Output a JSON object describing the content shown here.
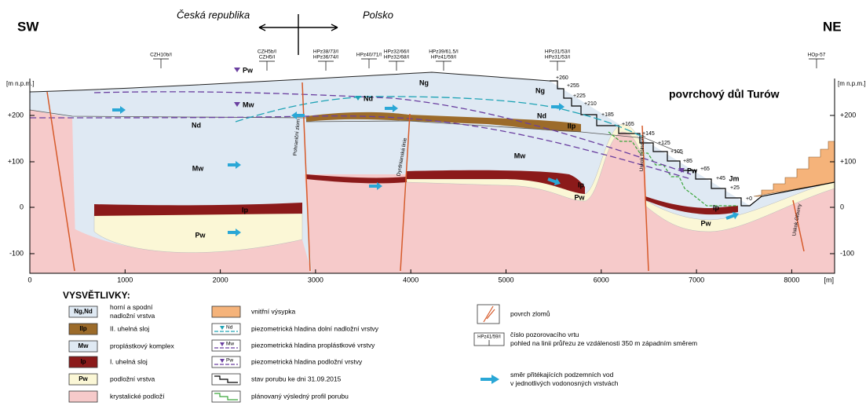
{
  "header": {
    "sw": "SW",
    "ne": "NE",
    "country_left": "Česká republika",
    "country_right": "Polsko",
    "mine": "povrchový důl Turów"
  },
  "axes": {
    "unit_left": "[m n.p.m.]",
    "unit_right": "[m n.p.m.]",
    "y_ticks_left": [
      "+200",
      "+100",
      "0",
      "-100"
    ],
    "y_ticks_right": [
      "+200",
      "+100",
      "0",
      "-100"
    ],
    "x_ticks": [
      "0",
      "1000",
      "2000",
      "3000",
      "4000",
      "5000",
      "6000",
      "7000",
      "8000"
    ],
    "x_unit": "[m]"
  },
  "wells": [
    [
      "CZH10b/I"
    ],
    [
      "CZH5b/I",
      "CZH5/I"
    ],
    [
      "HPz38/73/I",
      "HPz36/74/I"
    ],
    [
      "HPz40/71/I"
    ],
    [
      "HPz32/66/I",
      "HPz32/68/I"
    ],
    [
      "HPz39/61.5/I",
      "HPz41/59/I"
    ],
    [
      "HPz31/53/I",
      "HPz31/53/I"
    ],
    [
      "HOp-57"
    ]
  ],
  "faults": [
    "Pohraniční zlom",
    "Dyrdnianská linie",
    "Uskok Północny",
    "Uskok Główny"
  ],
  "layer_labels": [
    "Ng",
    "Ng",
    "Nd",
    "Nd",
    "Mw",
    "Mw",
    "IIp",
    "Ip",
    "Ip",
    "Ip",
    "Pw",
    "Pw",
    "Pw",
    "Jm"
  ],
  "piezometric_labels": [
    "Pw",
    "Mw",
    "Nd",
    "Pw"
  ],
  "elevations": [
    "+260",
    "+255",
    "+225",
    "+210",
    "+185",
    "+165",
    "+145",
    "+125",
    "+105",
    "+85",
    "+65",
    "+45",
    "+25",
    "+0"
  ],
  "legend": {
    "title": "VYSVĚTLIVKY:",
    "items": [
      {
        "swatch": "Ng,Nd",
        "text": [
          "horní a spodní",
          "nadložní vrstva"
        ]
      },
      {
        "swatch": "IIp",
        "text": [
          "II. uhelná sloj"
        ]
      },
      {
        "swatch": "Mw",
        "text": [
          "proplástkový komplex"
        ]
      },
      {
        "swatch": "Ip",
        "text": [
          "I. uhelná sloj"
        ]
      },
      {
        "swatch": "Pw",
        "text": [
          "podložní vrstva"
        ]
      },
      {
        "text": [
          "krystalické podloží"
        ]
      },
      {
        "text": [
          "vnitřní výsypka"
        ]
      },
      {
        "swatch": "Nd",
        "text": [
          "piezometrická hladina dolní nadložní vrstvy"
        ]
      },
      {
        "swatch": "Mw",
        "text": [
          "piezometrická hladina proplástkové vrstvy"
        ]
      },
      {
        "swatch": "Pw",
        "text": [
          "piezometrická hladina podložní vrstvy"
        ]
      },
      {
        "text": [
          "stav porubu ke dni 31.09.2015"
        ]
      },
      {
        "text": [
          "plánovaný výsledný profil porubu"
        ]
      },
      {
        "text": [
          "povrch zlomů"
        ]
      },
      {
        "swatch": "HPz41/59/I",
        "text": [
          "číslo pozorovacího vrtu",
          "pohled na linii průřezu ze vzdálenosti 350 m západním směrem"
        ]
      },
      {
        "text": [
          "směr přitékajících podzemních vod",
          "v jednotlivých vodonosných vrstvách"
        ]
      }
    ]
  }
}
